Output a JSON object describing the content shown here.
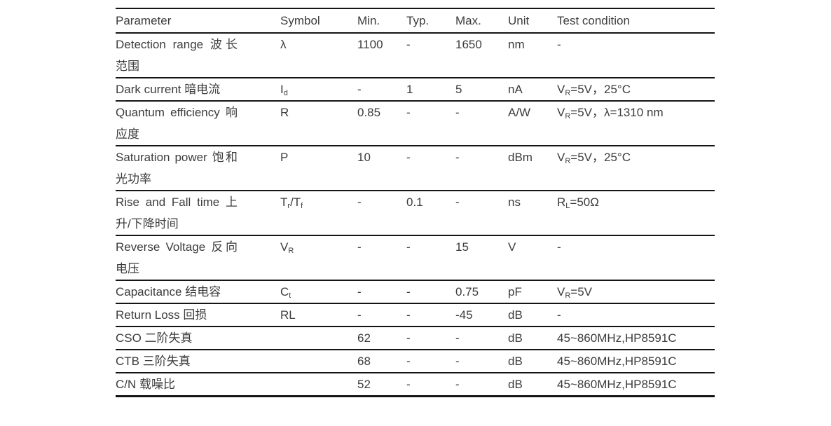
{
  "table": {
    "headers": [
      "Parameter",
      "Symbol",
      "Min.",
      "Typ.",
      "Max.",
      "Unit",
      "Test condition"
    ],
    "rows": [
      {
        "parameter": "Detection range 波长范围",
        "symbol": [
          {
            "t": "λ"
          }
        ],
        "min": "1100",
        "typ": "-",
        "max": "1650",
        "unit": "nm",
        "condition": [
          {
            "t": "-"
          }
        ],
        "lines": 2
      },
      {
        "parameter": "Dark current 暗电流",
        "symbol": [
          {
            "t": "I"
          },
          {
            "t": "d",
            "sub": true
          }
        ],
        "min": "-",
        "typ": "1",
        "max": "5",
        "unit": "nA",
        "condition": [
          {
            "t": "V"
          },
          {
            "t": "R",
            "sub": true
          },
          {
            "t": "=5V，25°C"
          }
        ],
        "lines": 1
      },
      {
        "parameter": "Quantum efficiency 响应度",
        "symbol": [
          {
            "t": "R"
          }
        ],
        "min": "0.85",
        "typ": "-",
        "max": "-",
        "unit": "A/W",
        "condition": [
          {
            "t": "V"
          },
          {
            "t": "R",
            "sub": true
          },
          {
            "t": "=5V，λ=1310 nm"
          }
        ],
        "lines": 2
      },
      {
        "parameter": "Saturation power 饱和光功率",
        "symbol": [
          {
            "t": "P"
          }
        ],
        "min": "10",
        "typ": "-",
        "max": "-",
        "unit": "dBm",
        "condition": [
          {
            "t": "V"
          },
          {
            "t": "R",
            "sub": true
          },
          {
            "t": "=5V，25°C"
          }
        ],
        "lines": 2
      },
      {
        "parameter": "Rise and Fall time 上升/下降时间",
        "symbol": [
          {
            "t": "T"
          },
          {
            "t": "r",
            "sub": true
          },
          {
            "t": "/T"
          },
          {
            "t": "f",
            "sub": true
          }
        ],
        "min": "-",
        "typ": "0.1",
        "max": "-",
        "unit": "ns",
        "condition": [
          {
            "t": "R"
          },
          {
            "t": "L",
            "sub": true
          },
          {
            "t": "=50Ω"
          }
        ],
        "lines": 2
      },
      {
        "parameter": "Reverse Voltage 反向电压",
        "symbol": [
          {
            "t": "V"
          },
          {
            "t": "R",
            "sub": true
          }
        ],
        "min": "-",
        "typ": "-",
        "max": "15",
        "unit": "V",
        "condition": [
          {
            "t": "-"
          }
        ],
        "lines": 2
      },
      {
        "parameter": "Capacitance 结电容",
        "symbol": [
          {
            "t": "C"
          },
          {
            "t": "t",
            "sub": true
          }
        ],
        "min": "-",
        "typ": "-",
        "max": "0.75",
        "unit": "pF",
        "condition": [
          {
            "t": "V"
          },
          {
            "t": "R",
            "sub": true
          },
          {
            "t": "=5V"
          }
        ],
        "lines": 1
      },
      {
        "parameter": "Return Loss 回损",
        "symbol": [
          {
            "t": "RL"
          }
        ],
        "min": "-",
        "typ": "-",
        "max": "-45",
        "unit": "dB",
        "condition": [
          {
            "t": "-"
          }
        ],
        "lines": 1
      },
      {
        "parameter": "CSO 二阶失真",
        "symbol": [],
        "min": "62",
        "typ": "-",
        "max": "-",
        "unit": "dB",
        "condition": [
          {
            "t": "45~860MHz,HP8591C"
          }
        ],
        "lines": 1
      },
      {
        "parameter": "CTB 三阶失真",
        "symbol": [],
        "min": "68",
        "typ": "-",
        "max": "-",
        "unit": "dB",
        "condition": [
          {
            "t": "45~860MHz,HP8591C"
          }
        ],
        "lines": 1
      },
      {
        "parameter": "C/N 载噪比",
        "symbol": [],
        "min": "52",
        "typ": "-",
        "max": "-",
        "unit": "dB",
        "condition": [
          {
            "t": "45~860MHz,HP8591C"
          }
        ],
        "lines": 1
      }
    ]
  }
}
